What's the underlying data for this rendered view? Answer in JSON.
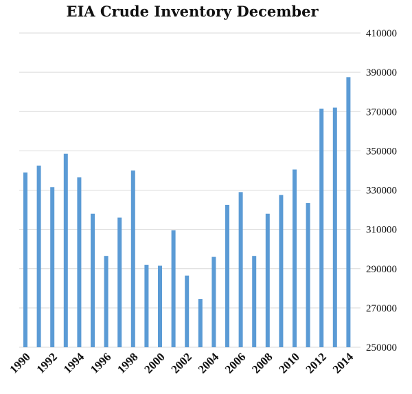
{
  "chart_data": {
    "type": "bar",
    "title": "EIA Crude Inventory December",
    "xlabel": "",
    "ylabel": "",
    "ylim": [
      250000,
      410000
    ],
    "y_ticks": [
      250000,
      270000,
      290000,
      310000,
      330000,
      350000,
      370000,
      390000,
      410000
    ],
    "y_tick_labels": [
      "250000",
      "270000",
      "290000",
      "310000",
      "330000",
      "350000",
      "370000",
      "390000",
      "410000"
    ],
    "x_tick_labels": [
      "1990",
      "1992",
      "1994",
      "1996",
      "1998",
      "2000",
      "2002",
      "2004",
      "2006",
      "2008",
      "2010",
      "2012",
      "2014"
    ],
    "categories": [
      "1990",
      "1991",
      "1992",
      "1993",
      "1994",
      "1995",
      "1996",
      "1997",
      "1998",
      "1999",
      "2000",
      "2001",
      "2002",
      "2003",
      "2004",
      "2005",
      "2006",
      "2007",
      "2008",
      "2009",
      "2010",
      "2011",
      "2012",
      "2013",
      "2014"
    ],
    "values": [
      339000,
      342500,
      331500,
      348500,
      336500,
      318000,
      296500,
      316000,
      340000,
      292000,
      291500,
      309500,
      286500,
      274500,
      296000,
      322500,
      329000,
      296500,
      318000,
      327500,
      340500,
      323500,
      371500,
      372000,
      387500
    ],
    "grid": true,
    "bar_color": "#5b9bd5",
    "axis_position": "right"
  }
}
